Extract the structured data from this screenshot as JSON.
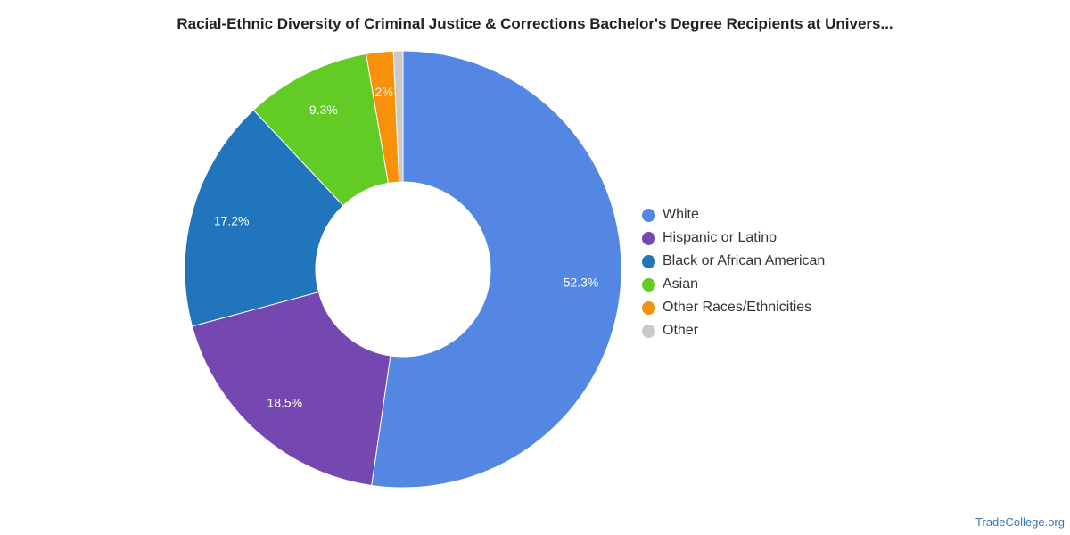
{
  "title": "Racial-Ethnic Diversity of Criminal Justice & Corrections Bachelor's Degree Recipients at Univers...",
  "chart_data": {
    "type": "pie",
    "variant": "donut",
    "slices": [
      {
        "name": "White",
        "value": 52.3,
        "label": "52.3%",
        "color": "#5486e3"
      },
      {
        "name": "Hispanic or Latino",
        "value": 18.5,
        "label": "18.5%",
        "color": "#7548b1"
      },
      {
        "name": "Black or African American",
        "value": 17.2,
        "label": "17.2%",
        "color": "#2175bc"
      },
      {
        "name": "Asian",
        "value": 9.3,
        "label": "9.3%",
        "color": "#62cc25"
      },
      {
        "name": "Other Races/Ethnicities",
        "value": 2.0,
        "label": "2%",
        "color": "#f89009"
      },
      {
        "name": "Other",
        "value": 0.7,
        "label": "",
        "color": "#c9c9c9"
      }
    ],
    "legend_position": "right"
  },
  "source": "TradeCollege.org"
}
